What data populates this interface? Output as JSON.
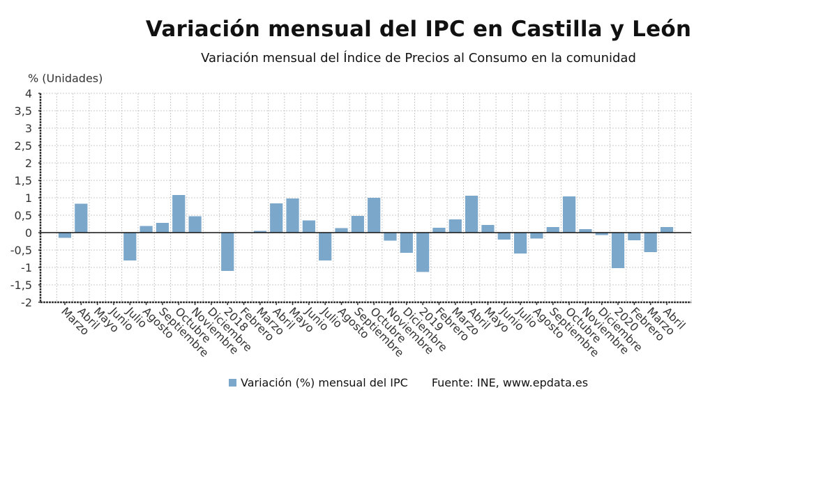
{
  "chart_data": {
    "type": "bar",
    "title": "Variación mensual del IPC en Castilla y León",
    "subtitle": "Variación mensual del Índice de Precios al Consumo en la comunidad",
    "ylabel": "% (Unidades)",
    "xlabel": "",
    "ylim": [
      -2,
      4
    ],
    "yticks": [
      4,
      3.5,
      3,
      2.5,
      2,
      1.5,
      1,
      0.5,
      0,
      -0.5,
      -1,
      -1.5,
      -2
    ],
    "ytick_labels": [
      "4",
      "3,5",
      "3",
      "2,5",
      "2",
      "1,5",
      "1",
      "0,5",
      "0",
      "-0,5",
      "-1",
      "-1,5",
      "-2"
    ],
    "grid": true,
    "categories": [
      "Marzo",
      "Abril",
      "Mayo",
      "Junio",
      "Julio",
      "Agosto",
      "Septiembre",
      "Octubre",
      "Noviembre",
      "Diciembre",
      "2018",
      "Febrero",
      "Marzo",
      "Abril",
      "Mayo",
      "Junio",
      "Julio",
      "Agosto",
      "Septiembre",
      "Octubre",
      "Noviembre",
      "Diciembre",
      "2019",
      "Febrero",
      "Marzo",
      "Abril",
      "Mayo",
      "Junio",
      "Julio",
      "Agosto",
      "Septiembre",
      "Octubre",
      "Noviembre",
      "Diciembre",
      "2020",
      "Febrero",
      "Marzo",
      "Abril"
    ],
    "series": [
      {
        "name": "Variación (%) mensual del IPC",
        "color": "#7ba7cb",
        "values": [
          -0.15,
          0.83,
          -0.01,
          0.0,
          -0.8,
          0.19,
          0.28,
          1.08,
          0.47,
          0.01,
          -1.1,
          0.0,
          0.05,
          0.84,
          0.98,
          0.35,
          -0.8,
          0.13,
          0.48,
          1.0,
          -0.23,
          -0.58,
          -1.13,
          0.14,
          0.38,
          1.06,
          0.22,
          -0.2,
          -0.6,
          -0.17,
          0.16,
          1.04,
          0.1,
          -0.07,
          -1.02,
          -0.22,
          -0.56,
          0.16
        ]
      }
    ],
    "legend_position": "bottom",
    "source": "Fuente: INE, www.epdata.es"
  }
}
